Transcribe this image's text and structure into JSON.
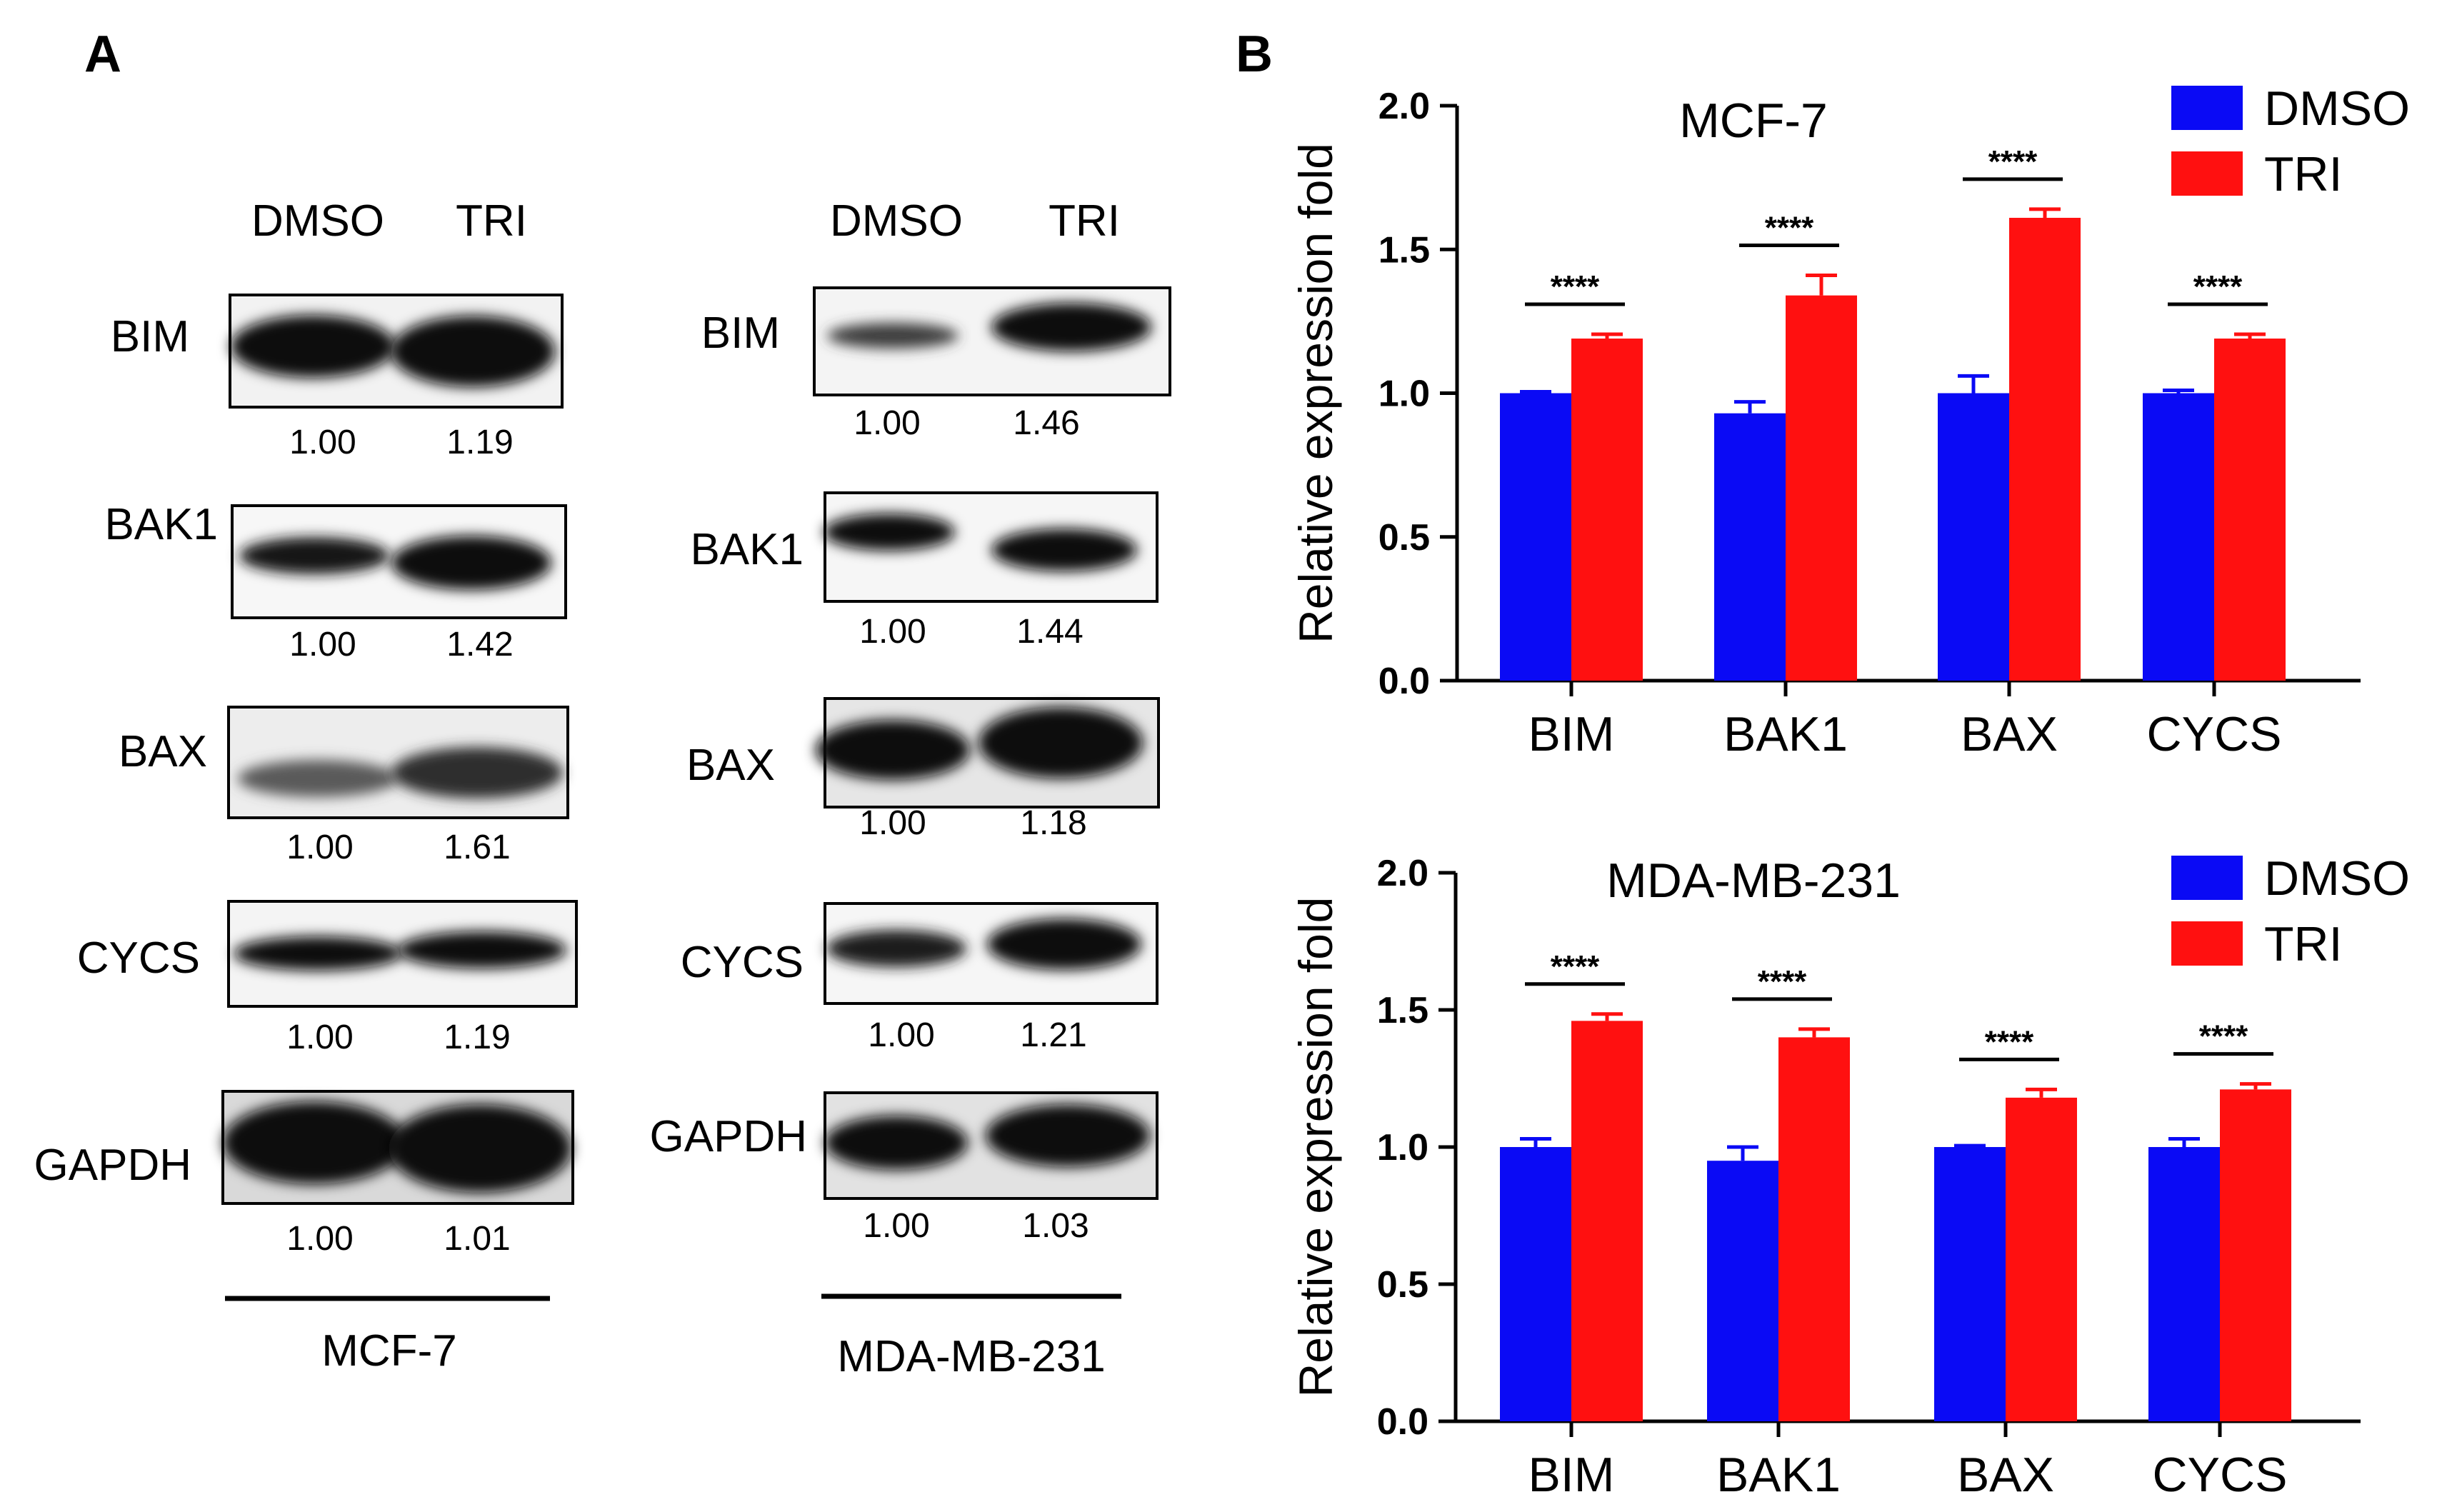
{
  "panel_a": {
    "label": "A",
    "blots": [
      {
        "cell_line": "MCF-7",
        "conditions": [
          "DMSO",
          "TRI"
        ],
        "proteins": [
          {
            "name": "BIM",
            "values": [
              "1.00",
              "1.19"
            ]
          },
          {
            "name": "BAK1",
            "values": [
              "1.00",
              "1.42"
            ]
          },
          {
            "name": "BAX",
            "values": [
              "1.00",
              "1.61"
            ]
          },
          {
            "name": "CYCS",
            "values": [
              "1.00",
              "1.19"
            ]
          },
          {
            "name": "GAPDH",
            "values": [
              "1.00",
              "1.01"
            ]
          }
        ]
      },
      {
        "cell_line": "MDA-MB-231",
        "conditions": [
          "DMSO",
          "TRI"
        ],
        "proteins": [
          {
            "name": "BIM",
            "values": [
              "1.00",
              "1.46"
            ]
          },
          {
            "name": "BAK1",
            "values": [
              "1.00",
              "1.44"
            ]
          },
          {
            "name": "BAX",
            "values": [
              "1.00",
              "1.18"
            ]
          },
          {
            "name": "CYCS",
            "values": [
              "1.00",
              "1.21"
            ]
          },
          {
            "name": "GAPDH",
            "values": [
              "1.00",
              "1.03"
            ]
          }
        ]
      }
    ]
  },
  "panel_b": {
    "label": "B"
  },
  "colors": {
    "dmso": "#0a0af5",
    "tri": "#ff1010"
  },
  "chart_data": [
    {
      "type": "bar",
      "title": "MCF-7",
      "xlabel": "",
      "ylabel": "Relative expression fold",
      "ylim": [
        0,
        2.0
      ],
      "yticks": [
        "0.0",
        "0.5",
        "1.0",
        "1.5",
        "2.0"
      ],
      "categories": [
        "BIM",
        "BAK1",
        "BAX",
        "CYCS"
      ],
      "series": [
        {
          "name": "DMSO",
          "values": [
            1.0,
            0.93,
            1.0,
            1.0
          ],
          "errors": [
            0.005,
            0.04,
            0.06,
            0.01
          ]
        },
        {
          "name": "TRI",
          "values": [
            1.19,
            1.34,
            1.61,
            1.19
          ],
          "errors": [
            0.015,
            0.07,
            0.03,
            0.015
          ]
        }
      ],
      "significance": [
        "****",
        "****",
        "****",
        "****"
      ],
      "legend_position": "top-right"
    },
    {
      "type": "bar",
      "title": "MDA-MB-231",
      "xlabel": "",
      "ylabel": "Relative expression fold",
      "ylim": [
        0,
        2.0
      ],
      "yticks": [
        "0.0",
        "0.5",
        "1.0",
        "1.5",
        "2.0"
      ],
      "categories": [
        "BIM",
        "BAK1",
        "BAX",
        "CYCS"
      ],
      "series": [
        {
          "name": "DMSO",
          "values": [
            1.0,
            0.95,
            1.0,
            1.0
          ],
          "errors": [
            0.03,
            0.05,
            0.005,
            0.03
          ]
        },
        {
          "name": "TRI",
          "values": [
            1.46,
            1.4,
            1.18,
            1.21
          ],
          "errors": [
            0.025,
            0.03,
            0.03,
            0.02
          ]
        }
      ],
      "significance": [
        "****",
        "****",
        "****",
        "****"
      ],
      "legend_position": "top-right"
    }
  ]
}
